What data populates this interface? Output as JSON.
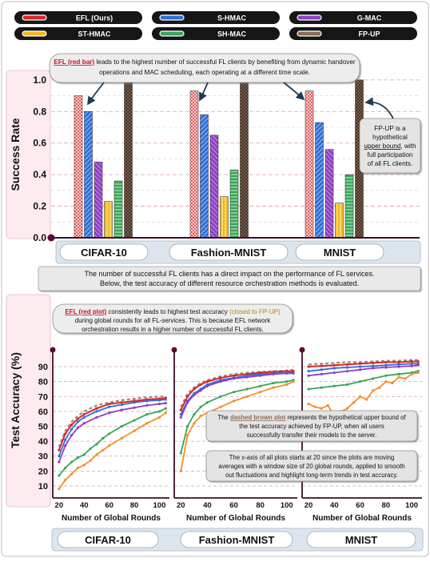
{
  "legend": [
    {
      "name": "EFL (Ours)",
      "color": "#d62728"
    },
    {
      "name": "S-HMAC",
      "color": "#2f6fd6"
    },
    {
      "name": "G-MAC",
      "color": "#8e3fc4"
    },
    {
      "name": "ST-HMAC",
      "color": "#f2b824"
    },
    {
      "name": "SH-MAC",
      "color": "#3aa55a"
    },
    {
      "name": "FP-UP",
      "color": "#8a6a55"
    }
  ],
  "top_callout": {
    "highlight": "EFL (red bar)",
    "text": " leads to the highest number of successful FL clients by benefiting from dynamic handover operations and MAC scheduling, each operating at a different time scale."
  },
  "side_callout": {
    "l1": "FP-UP is a",
    "l2": "hypothetical",
    "l3u": "upper bound",
    "l3": ", with",
    "l4": "full participation",
    "l5": "of all FL clients."
  },
  "middle_text": {
    "l1": "The number of successful FL clients has a direct impact on the performance of FL services.",
    "l2": "Below, the test accuracy of different resource orchestration methods is evaluated."
  },
  "bottom_callout": {
    "highlight": "EFL (red plot)",
    "t1": " consistently leads to highest test accuracy ",
    "paren": "(closed to FP-UP)",
    "l2": "during global rounds for all FL-services. This is because EFL network",
    "l3": "orchestration results in a higher number of successful FL clients."
  },
  "dashed_callout": {
    "l1a": "The ",
    "l1u": "dashed brown plot",
    "l1b": " represents the hypothetical upper bound of",
    "l2": "the test accuracy achieved by FP-UP,  when all users",
    "l3": "successfully transfer their models to the server."
  },
  "window_callout": {
    "l1": "The x-axis of all plots starts at 20 since the plots are moving",
    "l2": "averages with a window size of 20 global rounds, applied to smooth",
    "l3": "out fluctuations and highlight long-term trends in test accuracy."
  },
  "chart_data": [
    {
      "type": "bar",
      "ylabel": "Success Rate",
      "ylim": [
        0,
        1.05
      ],
      "yticks": [
        0.0,
        0.2,
        0.4,
        0.6,
        0.8,
        1.0
      ],
      "yticklabels": [
        "0.0",
        "0.2",
        "0.4",
        "0.6",
        "0.8",
        "1.0"
      ],
      "categories": [
        "CIFAR-10",
        "Fashion-MNIST",
        "MNIST"
      ],
      "series": [
        {
          "name": "EFL (Ours)",
          "values": [
            0.9,
            0.93,
            0.93
          ]
        },
        {
          "name": "S-HMAC",
          "values": [
            0.8,
            0.78,
            0.73
          ]
        },
        {
          "name": "G-MAC",
          "values": [
            0.48,
            0.65,
            0.56
          ]
        },
        {
          "name": "ST-HMAC",
          "values": [
            0.23,
            0.26,
            0.22
          ]
        },
        {
          "name": "SH-MAC",
          "values": [
            0.36,
            0.43,
            0.4
          ]
        },
        {
          "name": "FP-UP",
          "values": [
            1.0,
            1.0,
            1.0
          ]
        }
      ]
    },
    {
      "type": "line",
      "ylabel": "Test Accuracy (%)",
      "yticks": [
        10,
        20,
        30,
        40,
        50,
        60,
        70,
        80,
        90
      ],
      "yticklabels": [
        "10",
        "20",
        "30",
        "40",
        "50",
        "60",
        "70",
        "80",
        "90"
      ],
      "ylim": [
        3,
        97
      ],
      "panels": [
        {
          "name": "CIFAR-10",
          "xlabel": "Number of Global Rounds",
          "xticks": [
            20,
            40,
            60,
            80,
            100
          ],
          "xlim": [
            15,
            108
          ],
          "series": [
            {
              "name": "FP-UP",
              "x": [
                20,
                25,
                30,
                35,
                40,
                50,
                60,
                70,
                80,
                90,
                100,
                105
              ],
              "y": [
                36,
                47,
                53,
                57,
                60,
                64,
                66,
                67.5,
                68.5,
                69.5,
                70,
                70
              ]
            },
            {
              "name": "EFL (Ours)",
              "x": [
                20,
                25,
                30,
                35,
                40,
                50,
                60,
                70,
                80,
                90,
                100,
                105
              ],
              "y": [
                34,
                45,
                51,
                55,
                58,
                62,
                65,
                66,
                67,
                68,
                68.5,
                69
              ]
            },
            {
              "name": "S-HMAC",
              "x": [
                20,
                25,
                30,
                35,
                40,
                50,
                60,
                70,
                80,
                90,
                100,
                105
              ],
              "y": [
                30,
                41,
                48,
                53,
                56,
                60,
                63,
                64.5,
                66,
                67,
                67.5,
                68
              ]
            },
            {
              "name": "G-MAC",
              "x": [
                20,
                25,
                30,
                35,
                40,
                50,
                60,
                70,
                80,
                90,
                100,
                105
              ],
              "y": [
                26,
                37,
                44,
                49,
                52,
                56,
                59,
                61,
                62.5,
                64,
                65,
                65.5
              ]
            },
            {
              "name": "SH-MAC",
              "x": [
                20,
                25,
                30,
                35,
                40,
                45,
                50,
                55,
                60,
                70,
                80,
                90,
                100,
                105
              ],
              "y": [
                17,
                22,
                26,
                29,
                31,
                35,
                38,
                42,
                45,
                50,
                54,
                58,
                60,
                62
              ]
            },
            {
              "name": "ST-HMAC",
              "x": [
                20,
                25,
                30,
                35,
                40,
                45,
                50,
                55,
                60,
                70,
                80,
                90,
                100,
                105
              ],
              "y": [
                8,
                14,
                18,
                22,
                24,
                27,
                31,
                34,
                37,
                42,
                47,
                52,
                56,
                59
              ]
            }
          ]
        },
        {
          "name": "Fashion-MNIST",
          "xlabel": "Number of Global Rounds",
          "xticks": [
            20,
            40,
            60,
            80,
            100
          ],
          "xlim": [
            15,
            108
          ],
          "series": [
            {
              "name": "FP-UP",
              "x": [
                20,
                25,
                30,
                35,
                40,
                50,
                60,
                70,
                80,
                90,
                100,
                105
              ],
              "y": [
                63,
                72,
                76,
                79,
                81,
                83.5,
                85,
                86,
                86.5,
                87,
                87.5,
                88
              ]
            },
            {
              "name": "EFL (Ours)",
              "x": [
                20,
                25,
                30,
                35,
                40,
                50,
                60,
                70,
                80,
                90,
                100,
                105
              ],
              "y": [
                61,
                70,
                75,
                78,
                80,
                82.5,
                84,
                85,
                86,
                86.5,
                87,
                87
              ]
            },
            {
              "name": "S-HMAC",
              "x": [
                20,
                25,
                30,
                35,
                40,
                50,
                60,
                70,
                80,
                90,
                100,
                105
              ],
              "y": [
                58,
                67,
                72,
                75,
                78,
                81,
                82.5,
                84,
                85,
                85.5,
                86,
                86
              ]
            },
            {
              "name": "G-MAC",
              "x": [
                20,
                25,
                30,
                35,
                40,
                50,
                60,
                70,
                80,
                90,
                100,
                105
              ],
              "y": [
                56,
                66,
                71,
                74,
                77,
                80,
                82,
                83,
                84,
                85,
                85.5,
                85.5
              ]
            },
            {
              "name": "SH-MAC",
              "x": [
                20,
                25,
                30,
                35,
                40,
                50,
                60,
                70,
                80,
                90,
                100,
                105
              ],
              "y": [
                32,
                50,
                58,
                63,
                66,
                70,
                73,
                75,
                77,
                79,
                80,
                81
              ]
            },
            {
              "name": "ST-HMAC",
              "x": [
                20,
                25,
                30,
                35,
                40,
                50,
                60,
                70,
                80,
                90,
                100,
                105
              ],
              "y": [
                20,
                44,
                52,
                57,
                59,
                63,
                67,
                70,
                73,
                76,
                78,
                80
              ]
            }
          ]
        },
        {
          "name": "MNIST",
          "xlabel": "Number of Global Rounds",
          "xticks": [
            20,
            40,
            60,
            80,
            100
          ],
          "xlim": [
            15,
            108
          ],
          "series": [
            {
              "name": "FP-UP",
              "x": [
                20,
                30,
                40,
                50,
                60,
                70,
                80,
                90,
                100,
                105
              ],
              "y": [
                91.5,
                92,
                92.5,
                93,
                93,
                93.5,
                94,
                94,
                94.5,
                94.5
              ]
            },
            {
              "name": "EFL (Ours)",
              "x": [
                20,
                30,
                40,
                50,
                60,
                70,
                80,
                90,
                100,
                105
              ],
              "y": [
                90,
                90.5,
                91,
                91.5,
                92,
                92.5,
                93,
                93,
                93.5,
                93.5
              ]
            },
            {
              "name": "S-HMAC",
              "x": [
                20,
                30,
                40,
                50,
                60,
                70,
                80,
                90,
                100,
                105
              ],
              "y": [
                87,
                88,
                89,
                89.5,
                90,
                90.5,
                91,
                91.5,
                92,
                92
              ]
            },
            {
              "name": "G-MAC",
              "x": [
                20,
                30,
                40,
                50,
                60,
                70,
                80,
                90,
                100,
                105
              ],
              "y": [
                84,
                85,
                86,
                87,
                88,
                89,
                89.5,
                90,
                90.5,
                91
              ]
            },
            {
              "name": "SH-MAC",
              "x": [
                20,
                30,
                40,
                50,
                60,
                70,
                80,
                90,
                100,
                105
              ],
              "y": [
                75,
                76,
                77,
                78,
                80,
                82,
                84,
                85,
                86,
                87
              ]
            },
            {
              "name": "ST-HMAC",
              "x": [
                20,
                25,
                30,
                35,
                40,
                45,
                50,
                55,
                60,
                65,
                70,
                75,
                80,
                85,
                90,
                95,
                100,
                105
              ],
              "y": [
                65,
                63,
                62,
                64,
                57,
                60,
                62,
                66,
                70,
                68,
                74,
                76,
                80,
                79,
                83,
                82,
                85,
                86
              ]
            }
          ]
        }
      ]
    }
  ]
}
